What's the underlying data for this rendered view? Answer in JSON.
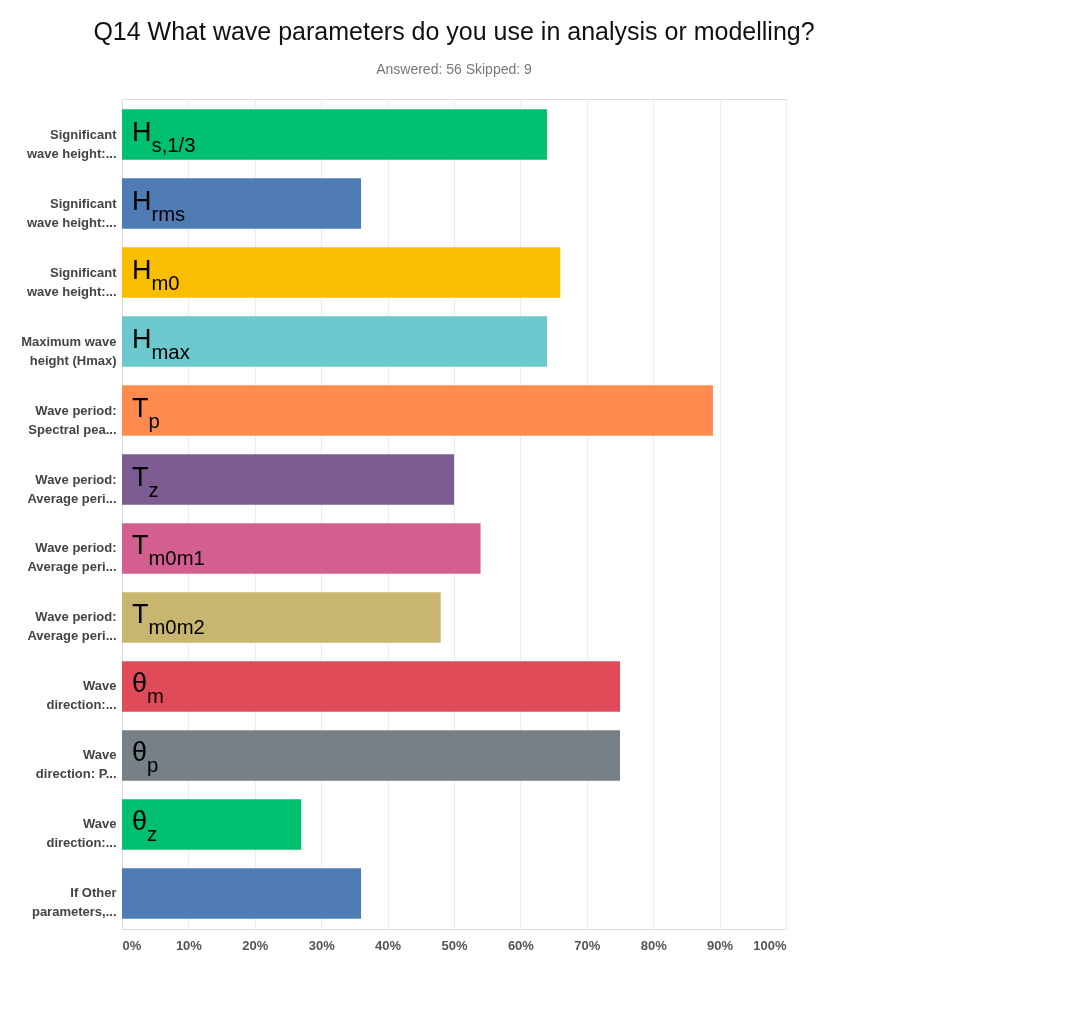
{
  "chart_data": {
    "type": "bar",
    "orientation": "horizontal",
    "title": "Q14 What wave parameters do you use in analysis or modelling?",
    "subtitle": "Answered: 56    Skipped: 9",
    "categories": [
      "Significant\nwave height:...",
      "Significant\nwave height:...",
      "Significant\nwave height:...",
      "Maximum wave\nheight (Hmax)",
      "Wave period:\nSpectral pea...",
      "Wave period:\nAverage peri...",
      "Wave period:\nAverage peri...",
      "Wave period:\nAverage peri...",
      "Wave\ndirection:...",
      "Wave\ndirection: P...",
      "Wave\ndirection:...",
      "If Other\nparameters,..."
    ],
    "values": [
      64,
      36,
      66,
      64,
      89,
      50,
      54,
      48,
      75,
      75,
      27,
      36
    ],
    "colors": [
      "#00bf6f",
      "#507cb6",
      "#f9be00",
      "#6bc8cd",
      "#ff8b4f",
      "#7d5c93",
      "#d25f90",
      "#c8b670",
      "#e04b5a",
      "#768086",
      "#00bf6f",
      "#507cb6"
    ],
    "annotations": [
      "H$_{s,1/3}$",
      "H$_{rms}$",
      "H$_{m0}$",
      "H$_{max}$",
      "T$_{p}$",
      "T$_{z}$",
      "T$_{m0m1}$",
      "T$_{m0m2}$",
      "θ$_{m}$",
      "θ$_{p}$",
      "θ$_{z}$"
    ],
    "xlim": [
      0,
      100
    ],
    "xticks": [
      {
        "value": 0,
        "label": "0%"
      },
      {
        "value": 10,
        "label": "10%"
      },
      {
        "value": 20,
        "label": "20%"
      },
      {
        "value": 30,
        "label": "30%"
      },
      {
        "value": 40,
        "label": "40%"
      },
      {
        "value": 50,
        "label": "50%"
      },
      {
        "value": 60,
        "label": "60%"
      },
      {
        "value": 70,
        "label": "70%"
      },
      {
        "value": 80,
        "label": "80%"
      },
      {
        "value": 90,
        "label": "90%"
      },
      {
        "value": 100,
        "label": "100%"
      }
    ],
    "grid": "x"
  }
}
